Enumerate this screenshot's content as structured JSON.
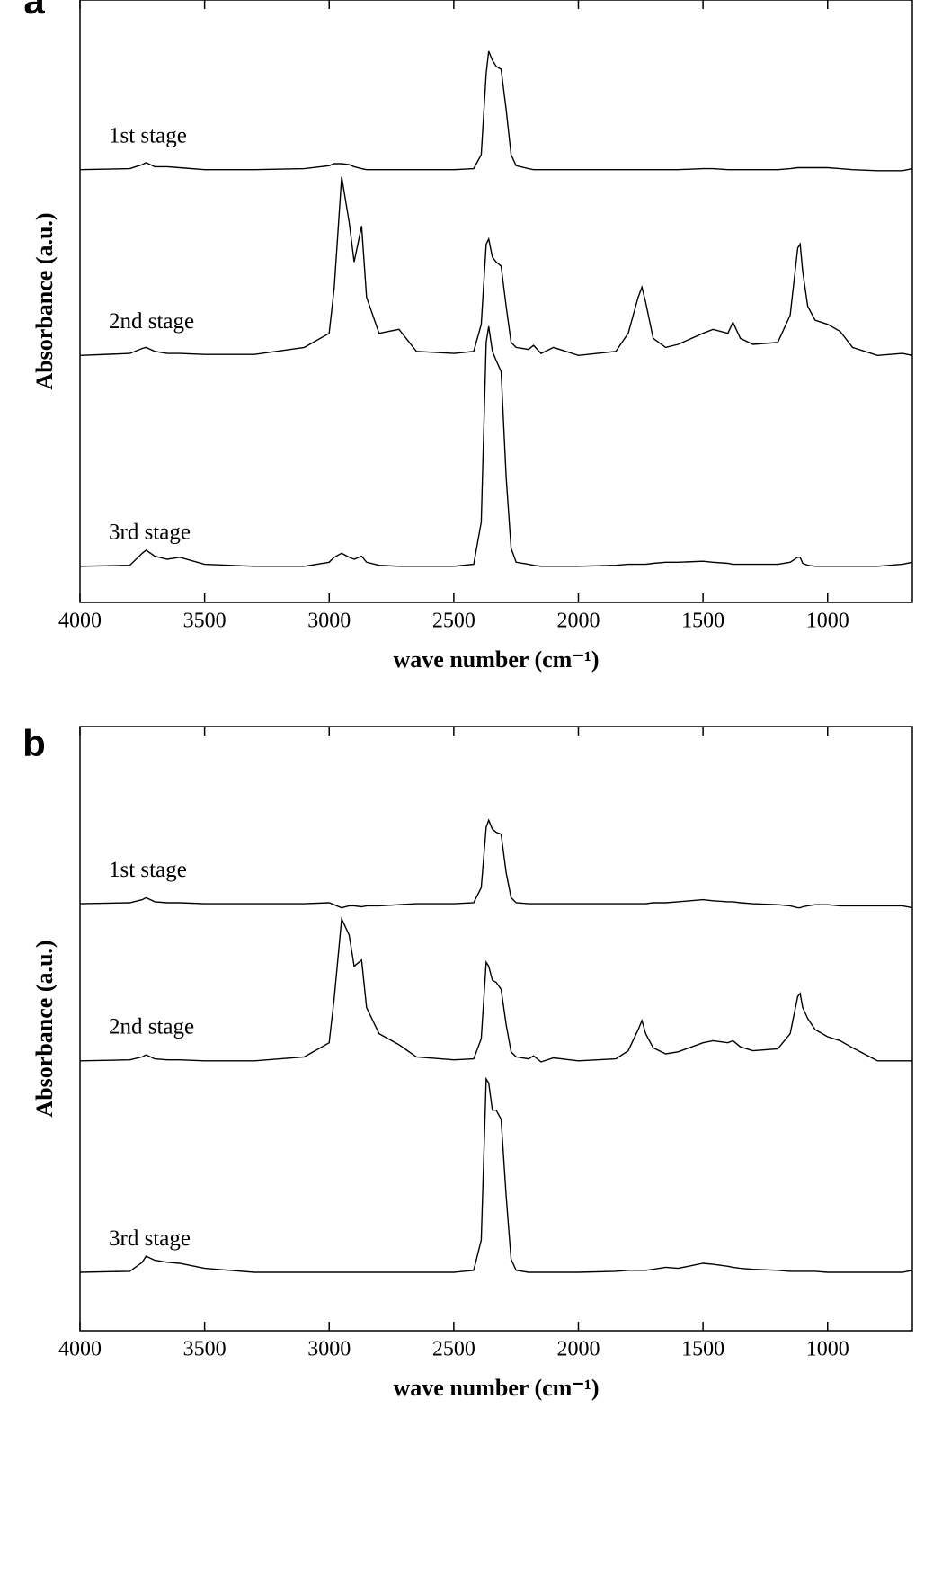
{
  "chart_data": [
    {
      "type": "line",
      "panel": "a",
      "xlabel": "wave number (cm⁻¹)",
      "ylabel": "Absorbance (a.u.)",
      "x": [
        4000,
        3800,
        3750,
        3735,
        3700,
        3650,
        3600,
        3500,
        3300,
        3100,
        3000,
        2980,
        2950,
        2920,
        2900,
        2870,
        2850,
        2800,
        2720,
        2650,
        2500,
        2420,
        2390,
        2370,
        2360,
        2345,
        2330,
        2310,
        2290,
        2270,
        2250,
        2200,
        2180,
        2150,
        2100,
        2000,
        1850,
        1800,
        1760,
        1745,
        1730,
        1700,
        1650,
        1600,
        1500,
        1460,
        1400,
        1380,
        1350,
        1300,
        1200,
        1150,
        1120,
        1110,
        1100,
        1080,
        1050,
        1000,
        950,
        900,
        800,
        700,
        660
      ],
      "xlim": [
        4000,
        660
      ],
      "xticks": [
        4000,
        3500,
        3000,
        2500,
        2000,
        1500,
        1000
      ],
      "ylim": [
        0,
        6
      ],
      "series": [
        {
          "name": "1st stage",
          "color": "#000000",
          "values": [
            4.31,
            4.32,
            4.36,
            4.38,
            4.34,
            4.34,
            4.33,
            4.31,
            4.31,
            4.32,
            4.35,
            4.37,
            4.37,
            4.36,
            4.34,
            4.32,
            4.31,
            4.31,
            4.31,
            4.31,
            4.31,
            4.32,
            4.46,
            5.27,
            5.49,
            5.4,
            5.34,
            5.31,
            4.91,
            4.46,
            4.35,
            4.32,
            4.31,
            4.31,
            4.31,
            4.31,
            4.31,
            4.31,
            4.31,
            4.31,
            4.31,
            4.31,
            4.31,
            4.31,
            4.32,
            4.32,
            4.31,
            4.31,
            4.31,
            4.31,
            4.31,
            4.32,
            4.33,
            4.33,
            4.33,
            4.33,
            4.33,
            4.33,
            4.32,
            4.31,
            4.3,
            4.3,
            4.32
          ]
        },
        {
          "name": "2nd stage",
          "color": "#000000",
          "values": [
            2.46,
            2.48,
            2.53,
            2.54,
            2.5,
            2.48,
            2.48,
            2.47,
            2.47,
            2.54,
            2.68,
            3.13,
            4.24,
            3.79,
            3.39,
            3.75,
            3.04,
            2.68,
            2.72,
            2.5,
            2.48,
            2.5,
            2.77,
            3.57,
            3.62,
            3.44,
            3.39,
            3.35,
            2.95,
            2.59,
            2.54,
            2.52,
            2.56,
            2.48,
            2.54,
            2.46,
            2.5,
            2.68,
            3.04,
            3.14,
            2.99,
            2.63,
            2.54,
            2.57,
            2.68,
            2.72,
            2.68,
            2.79,
            2.63,
            2.57,
            2.59,
            2.86,
            3.53,
            3.57,
            3.3,
            2.95,
            2.81,
            2.77,
            2.7,
            2.54,
            2.46,
            2.48,
            2.46
          ]
        },
        {
          "name": "3rd stage",
          "color": "#000000",
          "values": [
            0.36,
            0.37,
            0.49,
            0.52,
            0.46,
            0.43,
            0.45,
            0.38,
            0.36,
            0.36,
            0.4,
            0.45,
            0.49,
            0.45,
            0.43,
            0.46,
            0.4,
            0.37,
            0.36,
            0.36,
            0.36,
            0.38,
            0.8,
            2.59,
            2.75,
            2.5,
            2.41,
            2.3,
            1.25,
            0.54,
            0.4,
            0.38,
            0.37,
            0.36,
            0.36,
            0.36,
            0.37,
            0.38,
            0.38,
            0.38,
            0.38,
            0.39,
            0.4,
            0.4,
            0.41,
            0.4,
            0.39,
            0.38,
            0.38,
            0.38,
            0.38,
            0.4,
            0.45,
            0.45,
            0.39,
            0.37,
            0.36,
            0.36,
            0.36,
            0.36,
            0.36,
            0.38,
            0.4
          ]
        }
      ]
    },
    {
      "type": "line",
      "panel": "b",
      "xlabel": "wave number (cm⁻¹)",
      "ylabel": "Absorbance (a.u.)",
      "x": [
        4000,
        3800,
        3750,
        3735,
        3700,
        3650,
        3600,
        3500,
        3300,
        3100,
        3000,
        2980,
        2950,
        2920,
        2900,
        2870,
        2850,
        2800,
        2720,
        2650,
        2500,
        2420,
        2390,
        2370,
        2360,
        2345,
        2330,
        2310,
        2290,
        2270,
        2250,
        2200,
        2180,
        2150,
        2100,
        2000,
        1850,
        1800,
        1760,
        1745,
        1730,
        1700,
        1650,
        1600,
        1500,
        1460,
        1400,
        1380,
        1350,
        1300,
        1200,
        1150,
        1120,
        1110,
        1100,
        1080,
        1050,
        1000,
        950,
        900,
        800,
        700,
        660
      ],
      "xlim": [
        4000,
        660
      ],
      "xticks": [
        4000,
        3500,
        3000,
        2500,
        2000,
        1500,
        1000
      ],
      "ylim": [
        0,
        6
      ],
      "series": [
        {
          "name": "1st stage",
          "color": "#000000",
          "values": [
            4.24,
            4.25,
            4.28,
            4.3,
            4.26,
            4.25,
            4.25,
            4.24,
            4.24,
            4.24,
            4.25,
            4.23,
            4.2,
            4.22,
            4.22,
            4.21,
            4.22,
            4.22,
            4.23,
            4.24,
            4.24,
            4.25,
            4.4,
            5.0,
            5.07,
            4.98,
            4.95,
            4.93,
            4.55,
            4.3,
            4.25,
            4.24,
            4.24,
            4.24,
            4.24,
            4.24,
            4.24,
            4.24,
            4.24,
            4.24,
            4.24,
            4.25,
            4.25,
            4.26,
            4.28,
            4.27,
            4.26,
            4.26,
            4.25,
            4.24,
            4.23,
            4.22,
            4.2,
            4.2,
            4.21,
            4.22,
            4.23,
            4.23,
            4.22,
            4.22,
            4.22,
            4.22,
            4.2
          ]
        },
        {
          "name": "2nd stage",
          "color": "#000000",
          "values": [
            2.68,
            2.69,
            2.72,
            2.74,
            2.7,
            2.69,
            2.69,
            2.68,
            2.68,
            2.72,
            2.86,
            3.3,
            4.09,
            3.93,
            3.62,
            3.68,
            3.21,
            2.95,
            2.84,
            2.72,
            2.69,
            2.7,
            2.9,
            3.66,
            3.62,
            3.48,
            3.46,
            3.39,
            3.04,
            2.77,
            2.72,
            2.7,
            2.73,
            2.67,
            2.71,
            2.68,
            2.7,
            2.78,
            2.99,
            3.08,
            2.95,
            2.81,
            2.75,
            2.77,
            2.86,
            2.88,
            2.86,
            2.88,
            2.82,
            2.78,
            2.8,
            2.95,
            3.32,
            3.35,
            3.21,
            3.1,
            2.99,
            2.92,
            2.88,
            2.81,
            2.68,
            2.68,
            2.68
          ]
        },
        {
          "name": "3rd stage",
          "color": "#000000",
          "values": [
            0.58,
            0.59,
            0.68,
            0.74,
            0.7,
            0.68,
            0.67,
            0.62,
            0.58,
            0.58,
            0.58,
            0.58,
            0.58,
            0.58,
            0.58,
            0.58,
            0.58,
            0.58,
            0.58,
            0.58,
            0.58,
            0.6,
            0.9,
            2.5,
            2.46,
            2.19,
            2.19,
            2.1,
            1.34,
            0.71,
            0.6,
            0.58,
            0.58,
            0.58,
            0.58,
            0.58,
            0.59,
            0.6,
            0.6,
            0.6,
            0.6,
            0.61,
            0.63,
            0.62,
            0.67,
            0.66,
            0.64,
            0.63,
            0.62,
            0.61,
            0.6,
            0.59,
            0.59,
            0.59,
            0.59,
            0.59,
            0.59,
            0.58,
            0.58,
            0.58,
            0.58,
            0.58,
            0.6
          ]
        }
      ]
    }
  ]
}
